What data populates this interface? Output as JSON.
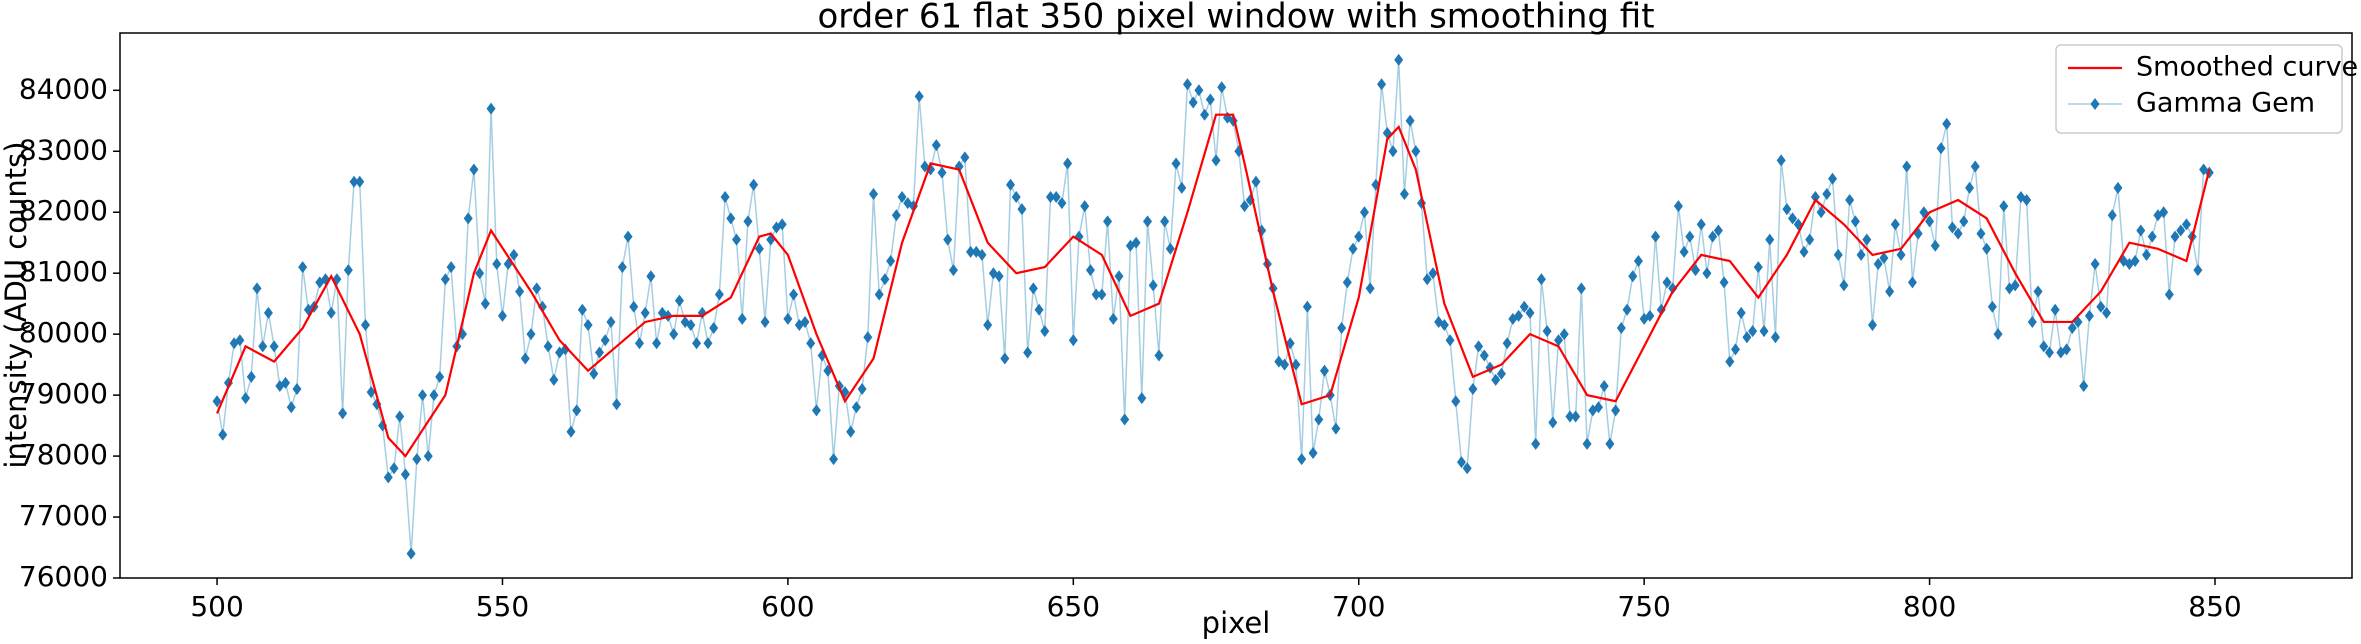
{
  "chart_data": {
    "type": "line",
    "title": "order 61 flat 350 pixel window with smoothing fit",
    "xlabel": "pixel",
    "ylabel": "intensity (ADU counts)",
    "xlim": [
      483,
      874
    ],
    "ylim": [
      76000,
      84940
    ],
    "xticks": [
      500,
      550,
      600,
      650,
      700,
      750,
      800,
      850
    ],
    "yticks": [
      76000,
      77000,
      78000,
      79000,
      80000,
      81000,
      82000,
      83000,
      84000
    ],
    "legend": "upper right",
    "series": [
      {
        "name": "Smoothed curve",
        "color": "#ff0000",
        "marker": "none",
        "x": [
          500,
          505,
          510,
          515,
          520,
          525,
          530,
          533,
          540,
          545,
          548,
          555,
          560,
          565,
          570,
          575,
          580,
          585,
          590,
          595,
          597,
          600,
          605,
          610,
          615,
          620,
          625,
          630,
          635,
          640,
          645,
          650,
          655,
          660,
          665,
          670,
          675,
          678,
          680,
          685,
          690,
          695,
          700,
          705,
          707,
          710,
          715,
          720,
          725,
          730,
          735,
          740,
          745,
          750,
          755,
          760,
          765,
          770,
          775,
          780,
          785,
          790,
          795,
          800,
          805,
          810,
          815,
          820,
          825,
          830,
          835,
          840,
          845,
          849
        ],
        "values": [
          78700,
          79800,
          79550,
          80100,
          80950,
          80000,
          78300,
          78000,
          79000,
          81000,
          81700,
          80700,
          79900,
          79400,
          79800,
          80200,
          80300,
          80300,
          80600,
          81600,
          81650,
          81300,
          80000,
          78900,
          79600,
          81500,
          82800,
          82700,
          81500,
          81000,
          81100,
          81600,
          81300,
          80300,
          80500,
          82000,
          83600,
          83600,
          82800,
          80700,
          78850,
          79000,
          80600,
          83200,
          83400,
          82700,
          80500,
          79300,
          79500,
          80000,
          79800,
          79000,
          78900,
          79800,
          80700,
          81300,
          81200,
          80600,
          81300,
          82200,
          81800,
          81300,
          81400,
          82000,
          82200,
          81900,
          81000,
          80200,
          80200,
          80700,
          81500,
          81400,
          81200,
          82700
        ]
      },
      {
        "name": "Gamma Gem",
        "color": "#1f77b4",
        "line_color": "#a6cee3",
        "marker": "diamond",
        "x": [
          500,
          501,
          502,
          503,
          504,
          505,
          506,
          507,
          508,
          509,
          510,
          511,
          512,
          513,
          514,
          515,
          516,
          517,
          518,
          519,
          520,
          521,
          522,
          523,
          524,
          525,
          526,
          527,
          528,
          529,
          530,
          531,
          532,
          533,
          534,
          535,
          536,
          537,
          538,
          539,
          540,
          541,
          542,
          543,
          544,
          545,
          546,
          547,
          548,
          549,
          550,
          551,
          552,
          553,
          554,
          555,
          556,
          557,
          558,
          559,
          560,
          561,
          562,
          563,
          564,
          565,
          566,
          567,
          568,
          569,
          570,
          571,
          572,
          573,
          574,
          575,
          576,
          577,
          578,
          579,
          580,
          581,
          582,
          583,
          584,
          585,
          586,
          587,
          588,
          589,
          590,
          591,
          592,
          593,
          594,
          595,
          596,
          597,
          598,
          599,
          600,
          601,
          602,
          603,
          604,
          605,
          606,
          607,
          608,
          609,
          610,
          611,
          612,
          613,
          614,
          615,
          616,
          617,
          618,
          619,
          620,
          621,
          622,
          623,
          624,
          625,
          626,
          627,
          628,
          629,
          630,
          631,
          632,
          633,
          634,
          635,
          636,
          637,
          638,
          639,
          640,
          641,
          642,
          643,
          644,
          645,
          646,
          647,
          648,
          649,
          650,
          651,
          652,
          653,
          654,
          655,
          656,
          657,
          658,
          659,
          660,
          661,
          662,
          663,
          664,
          665,
          666,
          667,
          668,
          669,
          670,
          671,
          672,
          673,
          674,
          675,
          676,
          677,
          678,
          679,
          680,
          681,
          682,
          683,
          684,
          685,
          686,
          687,
          688,
          689,
          690,
          691,
          692,
          693,
          694,
          695,
          696,
          697,
          698,
          699,
          700,
          701,
          702,
          703,
          704,
          705,
          706,
          707,
          708,
          709,
          710,
          711,
          712,
          713,
          714,
          715,
          716,
          717,
          718,
          719,
          720,
          721,
          722,
          723,
          724,
          725,
          726,
          727,
          728,
          729,
          730,
          731,
          732,
          733,
          734,
          735,
          736,
          737,
          738,
          739,
          740,
          741,
          742,
          743,
          744,
          745,
          746,
          747,
          748,
          749,
          750,
          751,
          752,
          753,
          754,
          755,
          756,
          757,
          758,
          759,
          760,
          761,
          762,
          763,
          764,
          765,
          766,
          767,
          768,
          769,
          770,
          771,
          772,
          773,
          774,
          775,
          776,
          777,
          778,
          779,
          780,
          781,
          782,
          783,
          784,
          785,
          786,
          787,
          788,
          789,
          790,
          791,
          792,
          793,
          794,
          795,
          796,
          797,
          798,
          799,
          800,
          801,
          802,
          803,
          804,
          805,
          806,
          807,
          808,
          809,
          810,
          811,
          812,
          813,
          814,
          815,
          816,
          817,
          818,
          819,
          820,
          821,
          822,
          823,
          824,
          825,
          826,
          827,
          828,
          829,
          830,
          831,
          832,
          833,
          834,
          835,
          836,
          837,
          838,
          839,
          840,
          841,
          842,
          843,
          844,
          845,
          846,
          847,
          848,
          849
        ],
        "values": [
          78900,
          78350,
          79200,
          79850,
          79900,
          78950,
          79300,
          80750,
          79800,
          80350,
          79800,
          79150,
          79200,
          78800,
          79100,
          81100,
          80400,
          80450,
          80850,
          80900,
          80350,
          80900,
          78700,
          81050,
          82500,
          82500,
          80150,
          79050,
          78850,
          78500,
          77650,
          77800,
          78650,
          77700,
          76400,
          77950,
          79000,
          78000,
          79000,
          79300,
          80900,
          81100,
          79800,
          80000,
          81900,
          82700,
          81000,
          80500,
          83700,
          81150,
          80300,
          81150,
          81300,
          80700,
          79600,
          80000,
          80750,
          80450,
          79800,
          79250,
          79700,
          79750,
          78400,
          78750,
          80400,
          80150,
          79350,
          79700,
          79900,
          80200,
          78850,
          81100,
          81600,
          80450,
          79850,
          80350,
          80950,
          79850,
          80350,
          80300,
          80000,
          80550,
          80200,
          80150,
          79850,
          80350,
          79850,
          80100,
          80650,
          82250,
          81900,
          81550,
          80250,
          81850,
          82450,
          81400,
          80200,
          81550,
          81750,
          81800,
          80250,
          80650,
          80150,
          80200,
          79850,
          78750,
          79650,
          79400,
          77950,
          79150,
          79050,
          78400,
          78800,
          79100,
          79950,
          82300,
          80650,
          80900,
          81200,
          81950,
          82250,
          82150,
          82100,
          83900,
          82750,
          82700,
          83100,
          82650,
          81550,
          81050,
          82750,
          82900,
          81350,
          81350,
          81300,
          80150,
          81000,
          80950,
          79600,
          82450,
          82250,
          82050,
          79700,
          80750,
          80400,
          80050,
          82250,
          82250,
          82150,
          82800,
          79900,
          81600,
          82100,
          81050,
          80650,
          80650,
          81850,
          80250,
          80950,
          78600,
          81450,
          81500,
          78950,
          81850,
          80800,
          79650,
          81850,
          81400,
          82800,
          82400,
          84100,
          83800,
          84000,
          83600,
          83850,
          82850,
          84050,
          83550,
          83500,
          83000,
          82100,
          82200,
          82500,
          81700,
          81150,
          80750,
          79550,
          79500,
          79850,
          79500,
          77950,
          80450,
          78050,
          78600,
          79400,
          79000,
          78450,
          80100,
          80850,
          81400,
          81600,
          82000,
          80750,
          82450,
          84100,
          83300,
          83000,
          84500,
          82300,
          83500,
          83000,
          82150,
          80900,
          81000,
          80200,
          80150,
          79900,
          78900,
          77900,
          77800,
          79100,
          79800,
          79650,
          79450,
          79250,
          79350,
          79850,
          80250,
          80300,
          80450,
          80350,
          78200,
          80900,
          80050,
          78550,
          79900,
          80000,
          78650,
          78650,
          80750,
          78200,
          78750,
          78800,
          79150,
          78200,
          78750,
          80100,
          80400,
          80950,
          81200,
          80250,
          80300,
          81600,
          80400,
          80850,
          80750,
          82100,
          81350,
          81600,
          81050,
          81800,
          81000,
          81600,
          81700,
          80850,
          79550,
          79750,
          80350,
          79950,
          80050,
          81100,
          80050,
          81550,
          79950,
          82850,
          82050,
          81900,
          81800,
          81350,
          81550,
          82250,
          82000,
          82300,
          82550,
          81300,
          80800,
          82200,
          81850,
          81300,
          81550,
          80150,
          81150,
          81250,
          80700,
          81800,
          81300,
          82750,
          80850,
          81650,
          82000,
          81850,
          81450,
          83050,
          83450,
          81750,
          81650,
          81850,
          82400,
          82750,
          81650,
          81400,
          80450,
          80000,
          82100,
          80750,
          80800,
          82250,
          82200,
          80200,
          80700,
          79800,
          79700,
          80400,
          79700,
          79750,
          80100,
          80200,
          79150,
          80300,
          81150,
          80450,
          80350,
          81950,
          82400,
          81200,
          81150,
          81200,
          81700,
          81300,
          81600,
          81950,
          82000,
          80650,
          81600,
          81700,
          81800,
          81600,
          81050,
          82700,
          82650
        ]
      }
    ]
  }
}
